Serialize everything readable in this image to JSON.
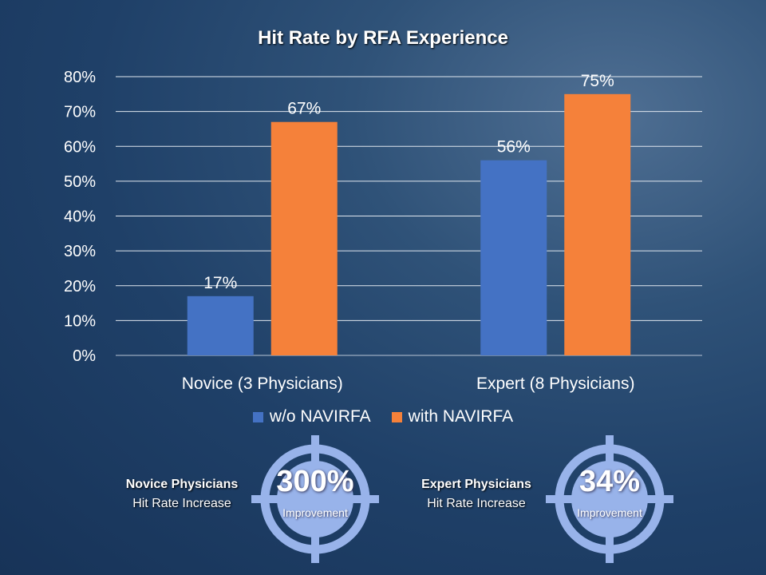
{
  "chart_data": {
    "type": "bar",
    "title": "Hit Rate by RFA Experience",
    "categories": [
      "Novice (3 Physicians)",
      "Expert (8 Physicians)"
    ],
    "series": [
      {
        "name": "w/o NAVIRFA",
        "values": [
          17,
          56
        ],
        "labels": [
          "17%",
          "56%"
        ],
        "color": "#4472c4"
      },
      {
        "name": "with NAVIRFA",
        "values": [
          67,
          75
        ],
        "labels": [
          "67%",
          "75%"
        ],
        "color": "#f5813a"
      }
    ],
    "ylim": [
      0,
      80
    ],
    "yticks": [
      "0%",
      "10%",
      "20%",
      "30%",
      "40%",
      "50%",
      "60%",
      "70%",
      "80%"
    ],
    "grid": true,
    "legend": "bottom"
  },
  "callouts": [
    {
      "heading": "Novice Physicians",
      "sub": "Hit Rate Increase",
      "value": "300%",
      "caption": "Improvement"
    },
    {
      "heading": "Expert Physicians",
      "sub": "Hit Rate Increase",
      "value": "34%",
      "caption": "Improvement"
    }
  ],
  "colors": {
    "target": "#98b3ea",
    "background": "#1f4068"
  }
}
